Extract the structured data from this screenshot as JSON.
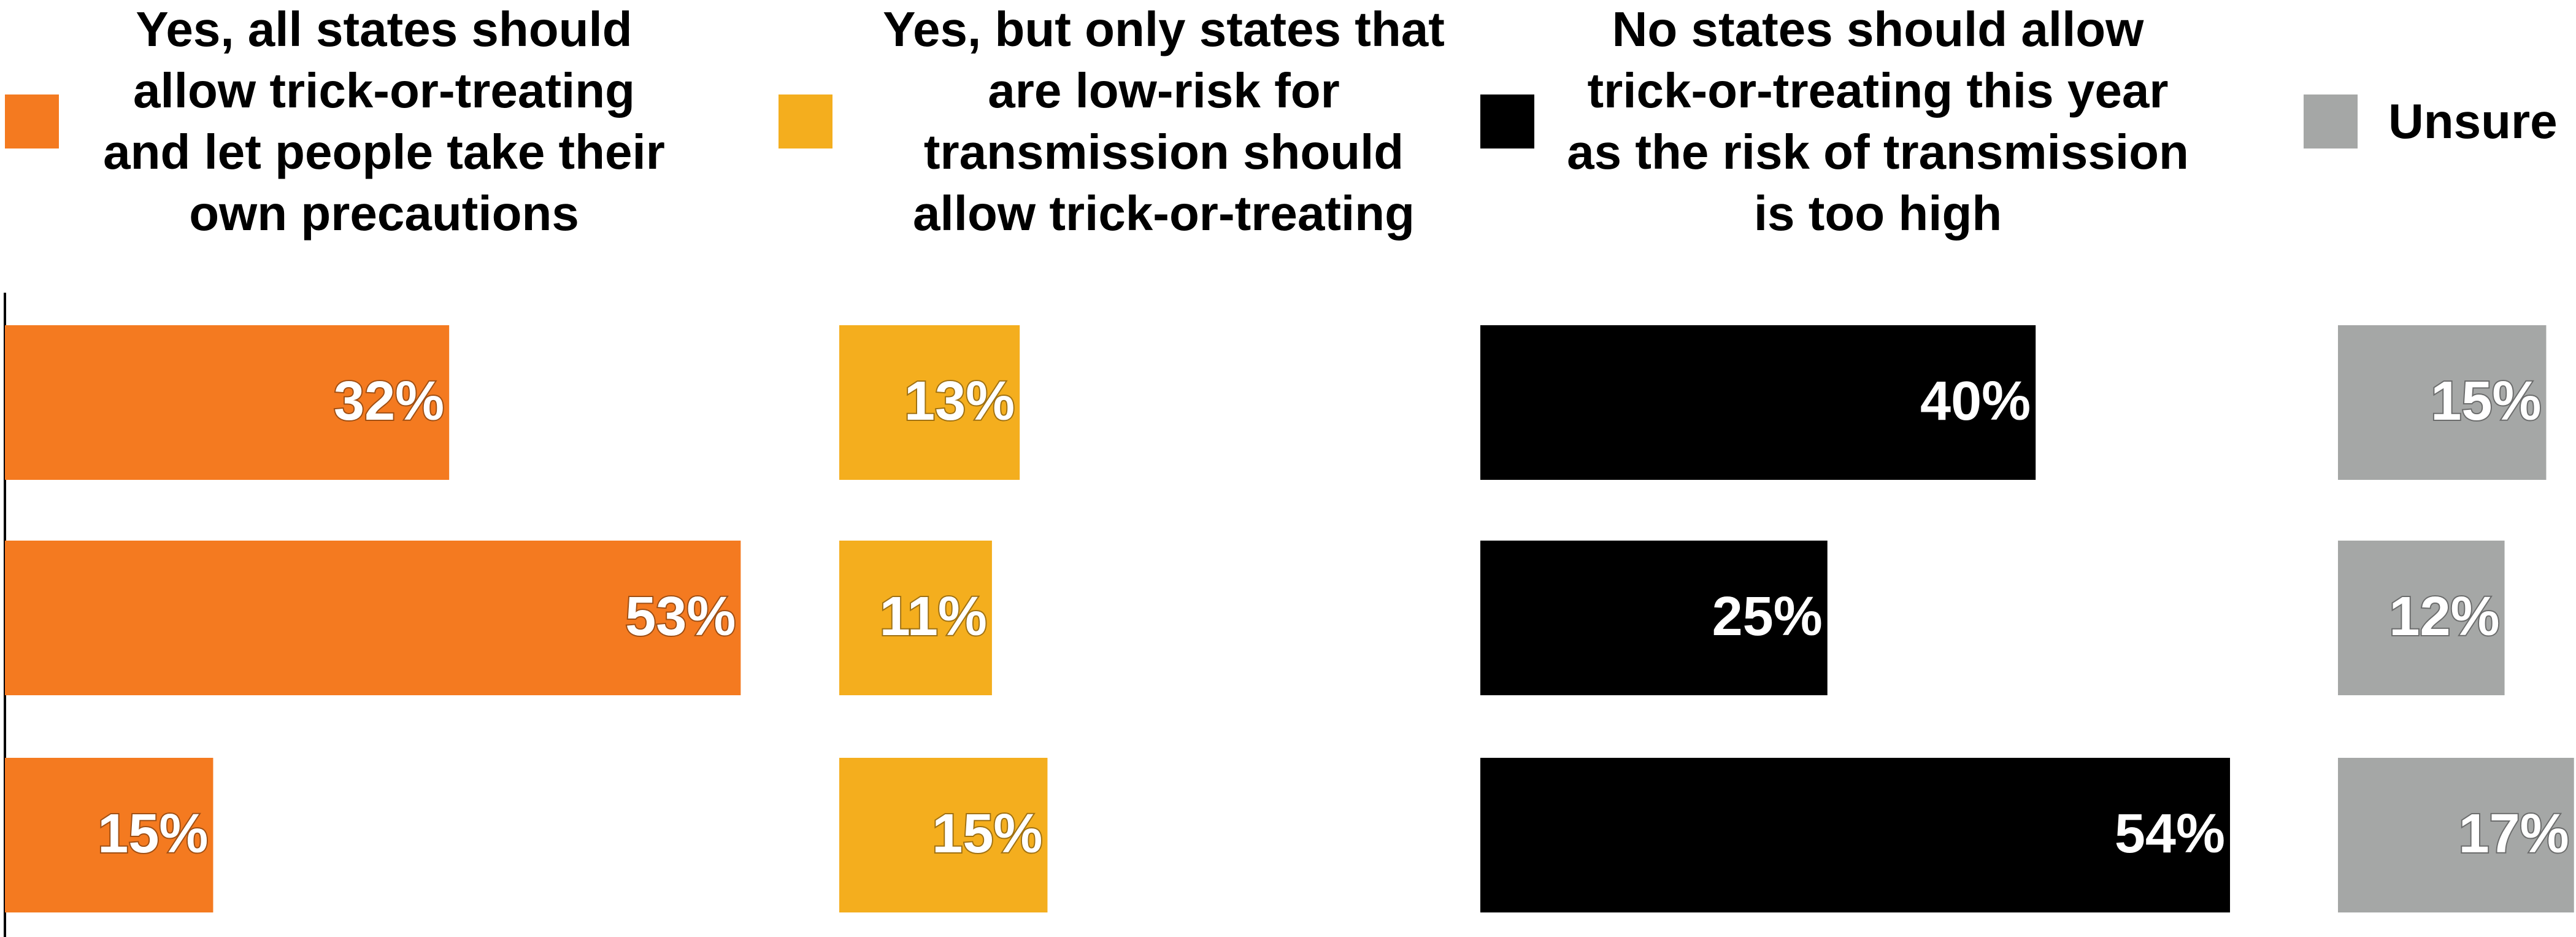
{
  "chart_data": {
    "type": "bar",
    "orientation": "horizontal",
    "categories": [
      null,
      null,
      null
    ],
    "series": [
      {
        "name": "Yes, all states should allow trick-or-treating and let people take their own precautions",
        "color": "#f47a20",
        "values": [
          32,
          53,
          15
        ],
        "value_labels": [
          "32%",
          "53%",
          "15%"
        ]
      },
      {
        "name": "Yes, but only states that are low-risk for transmission should allow trick-or-treating",
        "color": "#f4ae1e",
        "values": [
          13,
          11,
          15
        ],
        "value_labels": [
          "13%",
          "11%",
          "15%"
        ]
      },
      {
        "name": "No states should allow trick-or-treating this year as the risk of transmission is too high",
        "color": "#000000",
        "values": [
          40,
          25,
          54
        ],
        "value_labels": [
          "40%",
          "25%",
          "54%"
        ]
      },
      {
        "name": "Unsure",
        "color": "#a5a7a6",
        "values": [
          15,
          12,
          17
        ],
        "value_labels": [
          "15%",
          "12%",
          "17%"
        ]
      }
    ]
  }
}
